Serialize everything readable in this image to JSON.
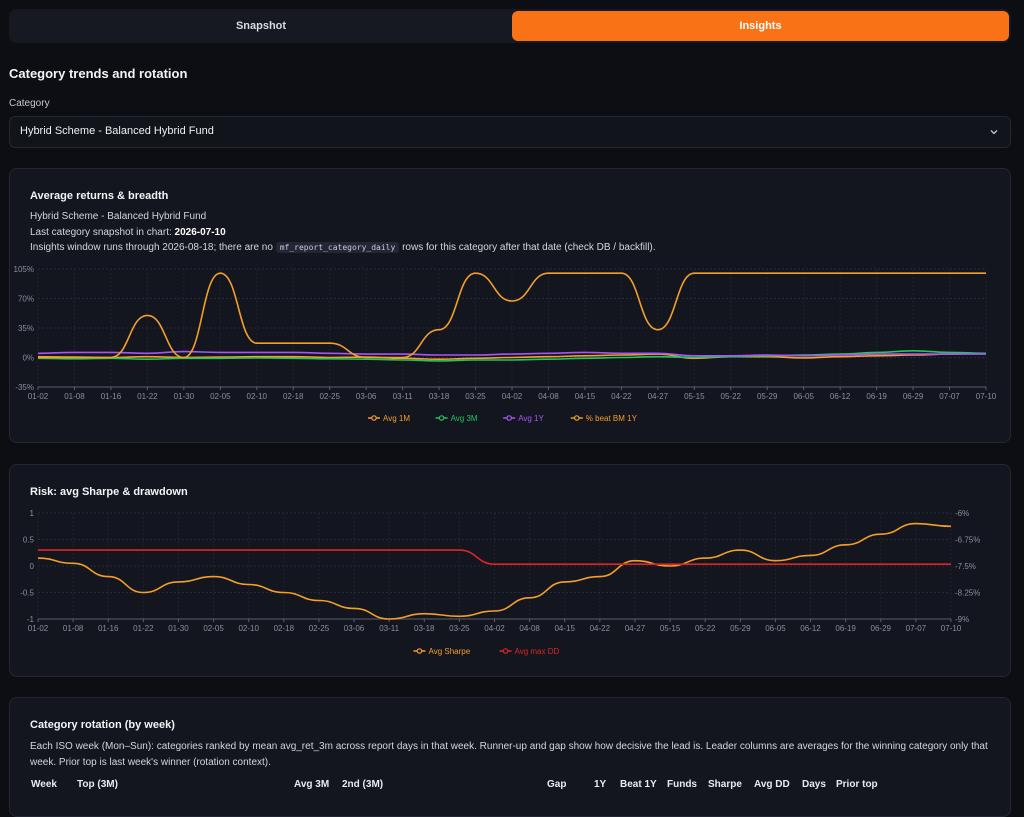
{
  "tabs": [
    {
      "label": "Snapshot",
      "active": false
    },
    {
      "label": "Insights",
      "active": true
    }
  ],
  "header": {
    "title": "Category trends and rotation"
  },
  "category_select": {
    "label": "Category",
    "value": "Hybrid Scheme - Balanced Hybrid Fund"
  },
  "colors": {
    "accent": "#f97316",
    "orange": "#f59e2a",
    "green": "#22c55e",
    "purple": "#a855f7",
    "red": "#dc2626"
  },
  "returns_card": {
    "title": "Average returns & breadth",
    "subtitle": "Hybrid Scheme - Balanced Hybrid Fund",
    "snapshot_prefix": "Last category snapshot in chart: ",
    "snapshot_date": "2026-07-10",
    "note_before": "Insights window runs through 2026-08-18; there are no ",
    "note_code": "mf_report_category_daily",
    "note_after": " rows for this category after that date (check DB / backfill)."
  },
  "risk_card": {
    "title": "Risk: avg Sharpe & drawdown"
  },
  "rotation_card": {
    "title": "Category rotation (by week)",
    "description": "Each ISO week (Mon–Sun): categories ranked by mean avg_ret_3m across report days in that week. Runner-up and gap show how decisive the lead is. Leader columns are averages for the winning category only that week. Prior top is last week's winner (rotation context).",
    "columns": [
      "Week",
      "Top (3M)",
      "Avg 3M",
      "2nd (3M)",
      "Gap",
      "1Y",
      "Beat 1Y",
      "Funds",
      "Sharpe",
      "Avg DD",
      "Days",
      "Prior top"
    ]
  },
  "chart_data": [
    {
      "type": "line",
      "title": "Average returns & breadth",
      "x": [
        "01-02",
        "01-08",
        "01-16",
        "01-22",
        "01-30",
        "02-05",
        "02-10",
        "02-18",
        "02-25",
        "03-06",
        "03-11",
        "03-18",
        "03-25",
        "04-02",
        "04-08",
        "04-15",
        "04-22",
        "04-27",
        "05-15",
        "05-22",
        "05-29",
        "06-05",
        "06-12",
        "06-19",
        "06-29",
        "07-07",
        "07-10"
      ],
      "yticks": [
        "105%",
        "70%",
        "35%",
        "0%",
        "-35%"
      ],
      "ylim": [
        -35,
        105
      ],
      "grid": true,
      "legend_position": "bottom",
      "series": [
        {
          "name": "Avg 1M",
          "color": "#f59e2a",
          "values": [
            1,
            0.5,
            0,
            1,
            0,
            0.5,
            1,
            1,
            0,
            0.5,
            -1,
            -2,
            -1,
            0,
            1,
            2,
            3,
            4,
            -1,
            1,
            1,
            -0.5,
            1,
            2,
            3,
            4,
            5
          ]
        },
        {
          "name": "Avg 3M",
          "color": "#22c55e",
          "values": [
            -1,
            -1.5,
            -1,
            -2,
            -1,
            -1,
            -0.5,
            -1,
            -1.5,
            -2,
            -3,
            -4,
            -3,
            -3,
            -2,
            -1,
            0,
            1,
            0,
            1,
            2,
            3,
            4,
            6,
            8,
            6,
            5
          ]
        },
        {
          "name": "Avg 1Y",
          "color": "#a855f7",
          "values": [
            5,
            6,
            6,
            5,
            7,
            6,
            6,
            6,
            5,
            4,
            4,
            3,
            3,
            4,
            5,
            6,
            5,
            5,
            2,
            2,
            3,
            2,
            3,
            4,
            4,
            4,
            4
          ]
        },
        {
          "name": "% beat BM 1Y",
          "color": "#f59e2a",
          "values": [
            0,
            0,
            0,
            50,
            0,
            100,
            17,
            17,
            17,
            0,
            0,
            33,
            100,
            67,
            100,
            100,
            100,
            33,
            100,
            100,
            100,
            100,
            100,
            100,
            100,
            100,
            100
          ]
        }
      ]
    },
    {
      "type": "line",
      "title": "Risk: avg Sharpe & drawdown",
      "x": [
        "01-02",
        "01-08",
        "01-16",
        "01-22",
        "01-30",
        "02-05",
        "02-10",
        "02-18",
        "02-25",
        "03-06",
        "03-11",
        "03-18",
        "03-25",
        "04-02",
        "04-08",
        "04-15",
        "04-22",
        "04-27",
        "05-15",
        "05-22",
        "05-29",
        "06-05",
        "06-12",
        "06-19",
        "06-29",
        "07-07",
        "07-10"
      ],
      "yticks_left": [
        "1",
        "0.5",
        "0",
        "-0.5",
        "-1"
      ],
      "yticks_right": [
        "-6%",
        "-6.75%",
        "-7.5%",
        "-8.25%",
        "-9%"
      ],
      "ylim_left": [
        -1,
        1
      ],
      "ylim_right": [
        -9,
        -6
      ],
      "grid": true,
      "legend_position": "bottom",
      "series": [
        {
          "name": "Avg Sharpe",
          "color": "#f59e2a",
          "axis": "left",
          "values": [
            0.15,
            0.05,
            -0.2,
            -0.5,
            -0.3,
            -0.2,
            -0.35,
            -0.5,
            -0.65,
            -0.8,
            -1.0,
            -0.9,
            -0.95,
            -0.85,
            -0.6,
            -0.3,
            -0.2,
            0.1,
            0,
            0.15,
            0.3,
            0.1,
            0.2,
            0.4,
            0.6,
            0.8,
            0.75
          ]
        },
        {
          "name": "Avg max DD",
          "color": "#dc2626",
          "axis": "right",
          "values": [
            -7.05,
            -7.05,
            -7.05,
            -7.05,
            -7.05,
            -7.05,
            -7.05,
            -7.05,
            -7.05,
            -7.05,
            -7.05,
            -7.05,
            -7.05,
            -7.45,
            -7.45,
            -7.45,
            -7.45,
            -7.45,
            -7.45,
            -7.45,
            -7.45,
            -7.45,
            -7.45,
            -7.45,
            -7.45,
            -7.45,
            -7.45
          ]
        }
      ]
    }
  ]
}
